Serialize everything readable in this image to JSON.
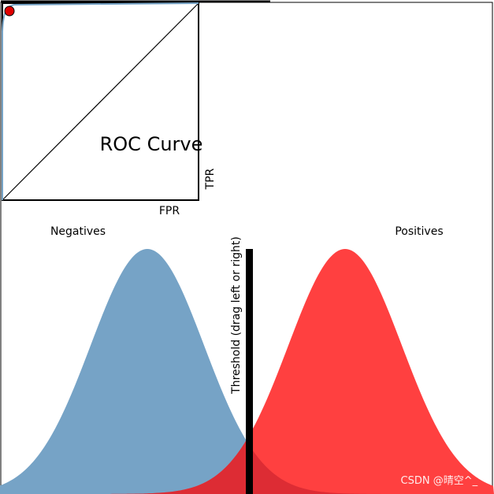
{
  "roc": {
    "title": "ROC Curve",
    "xlabel": "FPR",
    "ylabel": "TPR"
  },
  "distributions": {
    "negatives_label": "Negatives",
    "positives_label": "Positives",
    "negatives_color": "#76a3c6",
    "positives_color": "#ff4040",
    "overlap_color": "#dd2c34"
  },
  "threshold": {
    "label": "Threshold (drag left or right)"
  },
  "watermark": "CSDN @晴空^_^",
  "colors": {
    "roc_curve": "#76a3c6",
    "roc_marker": "#e00000",
    "threshold_bar": "#000000",
    "frame": "#000000"
  }
}
